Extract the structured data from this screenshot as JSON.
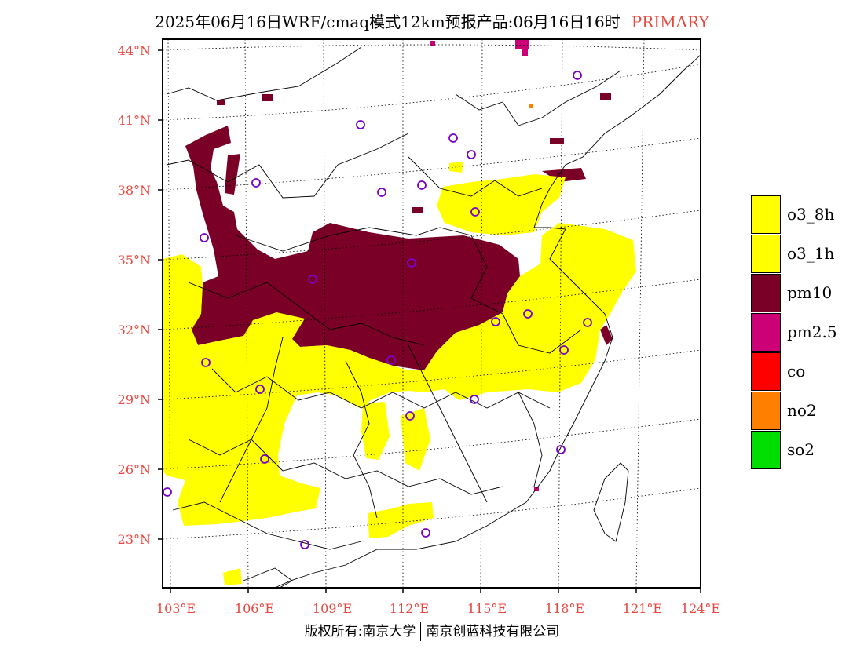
{
  "title": {
    "main": "2025年06月16日WRF/cmaq模式12km预报产品:06月16日16时",
    "tag": "PRIMARY"
  },
  "axes": {
    "lat_ticks": [
      "44°N",
      "41°N",
      "38°N",
      "35°N",
      "32°N",
      "29°N",
      "26°N",
      "23°N"
    ],
    "lon_ticks": [
      "103°E",
      "106°E",
      "109°E",
      "112°E",
      "115°E",
      "118°E",
      "121°E",
      "124°E"
    ]
  },
  "legend": [
    {
      "label": "o3_8h",
      "color": "#ffff00"
    },
    {
      "label": "o3_1h",
      "color": "#ffff00"
    },
    {
      "label": "pm10",
      "color": "#7b0027"
    },
    {
      "label": "pm2.5",
      "color": "#cc0077"
    },
    {
      "label": "co",
      "color": "#ff0000"
    },
    {
      "label": "no2",
      "color": "#ff7f00"
    },
    {
      "label": "so2",
      "color": "#00dd00"
    }
  ],
  "copyright": {
    "left": "版权所有:南京大学",
    "right": "南京创蓝科技有限公司"
  },
  "colors": {
    "o3": "#ffff00",
    "pm10": "#7b0027",
    "pm25": "#cc0077",
    "station": "#7a00cc",
    "axis_text": "#e8473f"
  }
}
